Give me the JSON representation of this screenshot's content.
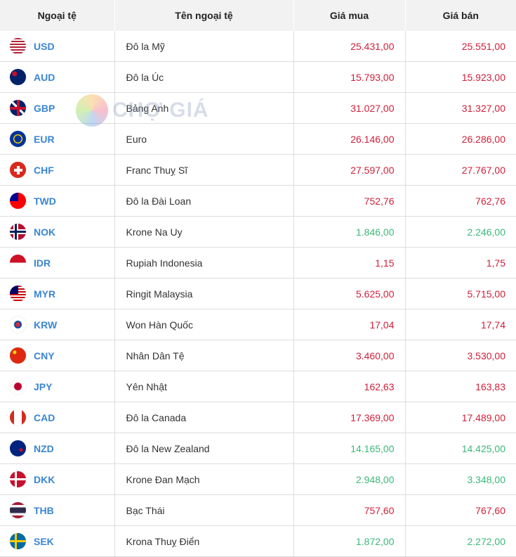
{
  "header": {
    "code": "Ngoại tệ",
    "name": "Tên ngoại tệ",
    "buy": "Giá mua",
    "sell": "Giá bán"
  },
  "watermark": {
    "text": "CHỢ GIÁ"
  },
  "colors": {
    "up": "#d0203a",
    "down": "#3cb878",
    "code": "#3a86d2"
  },
  "rows": [
    {
      "code": "USD",
      "name": "Đô la Mỹ",
      "buy": "25.431,00",
      "sell": "25.551,00",
      "trend": "up",
      "flag": "us-flag-icon"
    },
    {
      "code": "AUD",
      "name": "Đô la Úc",
      "buy": "15.793,00",
      "sell": "15.923,00",
      "trend": "up",
      "flag": "au-flag-icon"
    },
    {
      "code": "GBP",
      "name": "Bảng Anh",
      "buy": "31.027,00",
      "sell": "31.327,00",
      "trend": "up",
      "flag": "gb-flag-icon"
    },
    {
      "code": "EUR",
      "name": "Euro",
      "buy": "26.146,00",
      "sell": "26.286,00",
      "trend": "up",
      "flag": "eu-flag-icon"
    },
    {
      "code": "CHF",
      "name": "Franc Thuỵ Sĩ",
      "buy": "27.597,00",
      "sell": "27.767,00",
      "trend": "up",
      "flag": "ch-flag-icon"
    },
    {
      "code": "TWD",
      "name": "Đô la Đài Loan",
      "buy": "752,76",
      "sell": "762,76",
      "trend": "up",
      "flag": "tw-flag-icon"
    },
    {
      "code": "NOK",
      "name": "Krone Na Uy",
      "buy": "1.846,00",
      "sell": "2.246,00",
      "trend": "down",
      "flag": "no-flag-icon"
    },
    {
      "code": "IDR",
      "name": "Rupiah Indonesia",
      "buy": "1,15",
      "sell": "1,75",
      "trend": "up",
      "flag": "id-flag-icon"
    },
    {
      "code": "MYR",
      "name": "Ringit Malaysia",
      "buy": "5.625,00",
      "sell": "5.715,00",
      "trend": "up",
      "flag": "my-flag-icon"
    },
    {
      "code": "KRW",
      "name": "Won Hàn Quốc",
      "buy": "17,04",
      "sell": "17,74",
      "trend": "up",
      "flag": "kr-flag-icon"
    },
    {
      "code": "CNY",
      "name": "Nhân Dân Tệ",
      "buy": "3.460,00",
      "sell": "3.530,00",
      "trend": "up",
      "flag": "cn-flag-icon"
    },
    {
      "code": "JPY",
      "name": "Yên Nhật",
      "buy": "162,63",
      "sell": "163,83",
      "trend": "up",
      "flag": "jp-flag-icon"
    },
    {
      "code": "CAD",
      "name": "Đô la Canada",
      "buy": "17.369,00",
      "sell": "17.489,00",
      "trend": "up",
      "flag": "ca-flag-icon"
    },
    {
      "code": "NZD",
      "name": "Đô la New Zealand",
      "buy": "14.165,00",
      "sell": "14.425,00",
      "trend": "down",
      "flag": "nz-flag-icon"
    },
    {
      "code": "DKK",
      "name": "Krone Đan Mạch",
      "buy": "2.948,00",
      "sell": "3.348,00",
      "trend": "down",
      "flag": "dk-flag-icon"
    },
    {
      "code": "THB",
      "name": "Bạc Thái",
      "buy": "757,60",
      "sell": "767,60",
      "trend": "up",
      "flag": "th-flag-icon"
    },
    {
      "code": "SEK",
      "name": "Krona Thuỵ Điển",
      "buy": "1.872,00",
      "sell": "2.272,00",
      "trend": "down",
      "flag": "se-flag-icon"
    }
  ]
}
